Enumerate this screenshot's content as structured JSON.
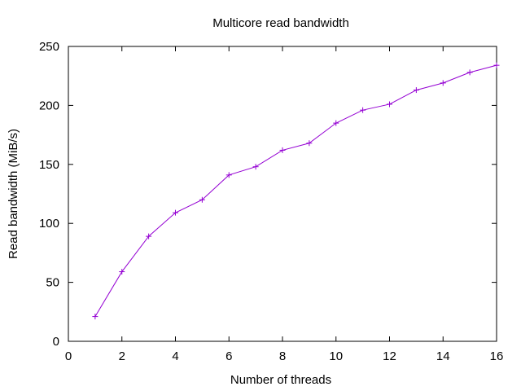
{
  "chart_data": {
    "type": "line",
    "title": "Multicore read bandwidth",
    "xlabel": "Number of threads",
    "ylabel": "Read bandwidth (MiB/s)",
    "xlim": [
      0,
      16
    ],
    "ylim": [
      0,
      250
    ],
    "xticks": [
      0,
      2,
      4,
      6,
      8,
      10,
      12,
      14,
      16
    ],
    "yticks": [
      0,
      50,
      100,
      150,
      200,
      250
    ],
    "grid": false,
    "legend": "none",
    "marker": "plus",
    "color": "#9400d3",
    "series": [
      {
        "x": [
          1,
          2,
          3,
          4,
          5,
          6,
          7,
          8,
          9,
          10,
          11,
          12,
          13,
          14,
          15,
          16
        ],
        "values": [
          21,
          59,
          89,
          109,
          120,
          141,
          148,
          162,
          168,
          185,
          196,
          201,
          213,
          219,
          228,
          234
        ]
      }
    ]
  }
}
